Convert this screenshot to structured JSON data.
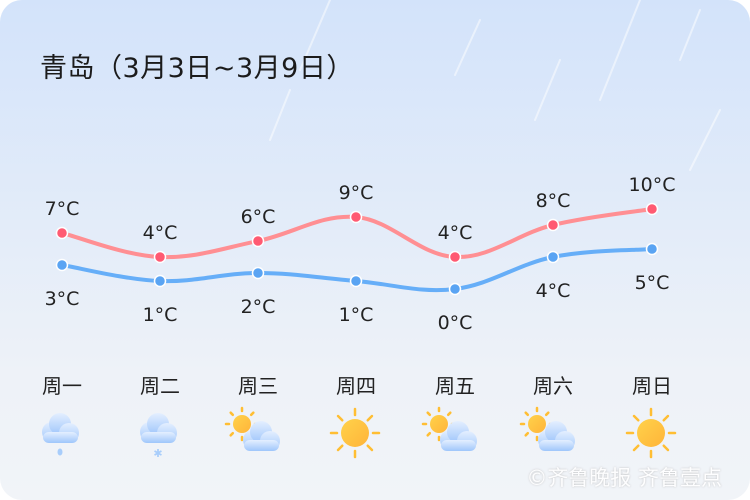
{
  "title": "青岛（3月3日~3月9日）",
  "watermark": "©齐鲁晚报  齐鲁壹点",
  "colors": {
    "high": "#ff8f93",
    "high_dot": "#ff5a72",
    "low": "#66aef8",
    "low_dot": "#5aa4f3"
  },
  "chart_data": {
    "type": "line",
    "categories": [
      "周一",
      "周二",
      "周三",
      "周四",
      "周五",
      "周六",
      "周日"
    ],
    "series": [
      {
        "values": [
          7,
          4,
          6,
          9,
          4,
          8,
          10
        ],
        "labels": [
          "7°C",
          "4°C",
          "6°C",
          "9°C",
          "4°C",
          "8°C",
          "10°C"
        ]
      },
      {
        "values": [
          3,
          1,
          2,
          1,
          0,
          4,
          5
        ],
        "labels": [
          "3°C",
          "1°C",
          "2°C",
          "1°C",
          "0°C",
          "4°C",
          "5°C"
        ]
      }
    ],
    "unit": "°C",
    "grid": false,
    "weather_icons": [
      "rain-icon",
      "snow-icon",
      "partly-cloudy-icon",
      "sunny-icon",
      "partly-cloudy-icon",
      "partly-cloudy-icon",
      "sunny-icon"
    ]
  }
}
